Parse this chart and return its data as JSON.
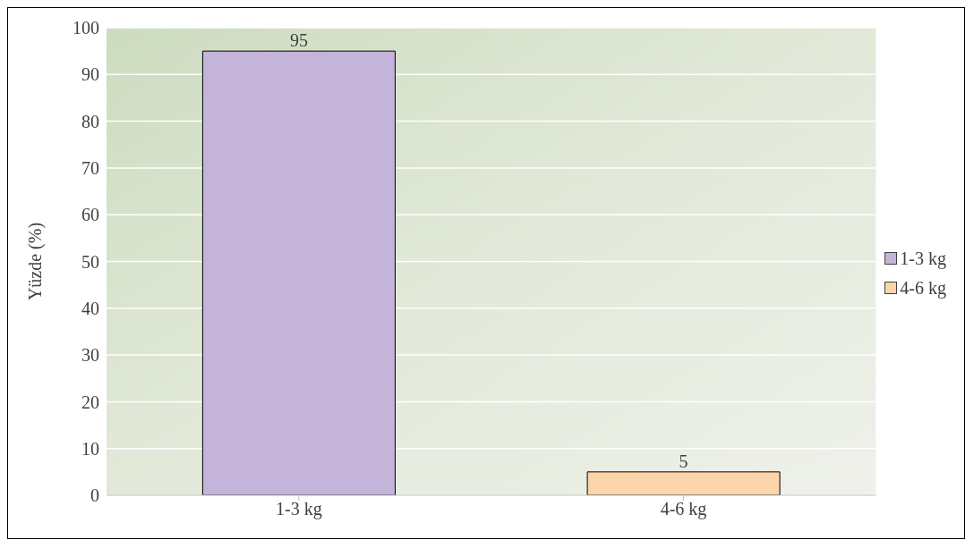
{
  "chart_data": {
    "type": "bar",
    "ylabel": "Yüzde (%)",
    "categories": [
      "1-3 kg",
      "4-6 kg"
    ],
    "series": [
      {
        "name": "1-3 kg",
        "color": "#c5b4da",
        "values": [
          95,
          null
        ]
      },
      {
        "name": "4-6 kg",
        "color": "#fcd5aa",
        "values": [
          null,
          5
        ]
      }
    ],
    "stacked": true,
    "ylim": [
      0,
      100
    ],
    "yticks": [
      0,
      10,
      20,
      30,
      40,
      50,
      60,
      70,
      80,
      90,
      100
    ],
    "grid": "y",
    "legend": "right",
    "data_labels": true
  }
}
